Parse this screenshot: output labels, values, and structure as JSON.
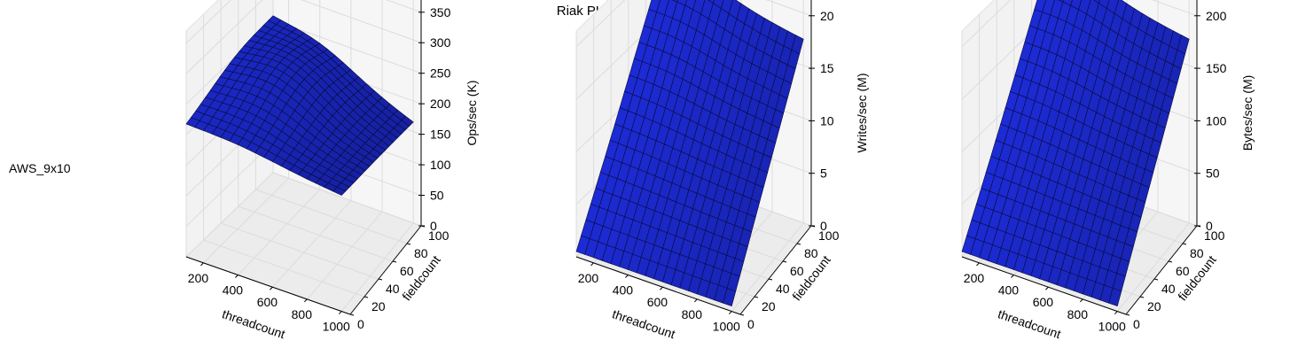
{
  "figure": {
    "title": "Riak PUT Throughput (YCSB)",
    "row_label": "AWS_9x10"
  },
  "chart_data": [
    {
      "type": "surface3d",
      "xlabel": "threadcount",
      "ylabel": "fieldcount",
      "zlabel": "Ops/sec (K)",
      "x_ticks": [
        200,
        400,
        600,
        800,
        1000
      ],
      "y_ticks": [
        0,
        20,
        40,
        60,
        80,
        100
      ],
      "z_ticks": [
        0,
        50,
        100,
        150,
        200,
        250,
        300,
        350
      ],
      "xlim": [
        100,
        1050
      ],
      "ylim": [
        0,
        100
      ],
      "zlim": [
        0,
        370
      ],
      "surface_color": "#1f2fe8",
      "surface": {
        "x": [
          100,
          1000
        ],
        "y": [
          0,
          100
        ],
        "z_corners": {
          "x_min_y_min": 215,
          "x_max_y_min": 190,
          "x_min_y_max": 250,
          "x_max_y_max": 165
        },
        "peak": {
          "x": 400,
          "y": 60,
          "z": 255
        }
      }
    },
    {
      "type": "surface3d",
      "xlabel": "threadcount",
      "ylabel": "fieldcount",
      "zlabel": "Writes/sec (M)",
      "x_ticks": [
        200,
        400,
        600,
        800,
        1000
      ],
      "y_ticks": [
        0,
        20,
        40,
        60,
        80,
        100
      ],
      "z_ticks": [
        0,
        5,
        10,
        15,
        20
      ],
      "xlim": [
        100,
        1050
      ],
      "ylim": [
        0,
        100
      ],
      "zlim": [
        0,
        21.5
      ],
      "surface_color": "#1f2fe8",
      "surface": {
        "x": [
          100,
          1000
        ],
        "y": [
          0,
          100
        ],
        "z_corners": {
          "x_min_y_min": 0.5,
          "x_max_y_min": 0.5,
          "x_min_y_max": 19.5,
          "x_max_y_max": 17.5
        },
        "peak": {
          "x": 300,
          "y": 100,
          "z": 20
        }
      }
    },
    {
      "type": "surface3d",
      "xlabel": "threadcount",
      "ylabel": "fieldcount",
      "zlabel": "Bytes/sec (M)",
      "x_ticks": [
        200,
        400,
        600,
        800,
        1000
      ],
      "y_ticks": [
        0,
        20,
        40,
        60,
        80,
        100
      ],
      "z_ticks": [
        0,
        50,
        100,
        150,
        200
      ],
      "xlim": [
        100,
        1050
      ],
      "ylim": [
        0,
        100
      ],
      "zlim": [
        0,
        215
      ],
      "surface_color": "#1f2fe8",
      "surface": {
        "x": [
          100,
          1000
        ],
        "y": [
          0,
          100
        ],
        "z_corners": {
          "x_min_y_min": 5,
          "x_max_y_min": 5,
          "x_min_y_max": 195,
          "x_max_y_max": 175
        },
        "peak": {
          "x": 300,
          "y": 100,
          "z": 200
        }
      }
    }
  ]
}
